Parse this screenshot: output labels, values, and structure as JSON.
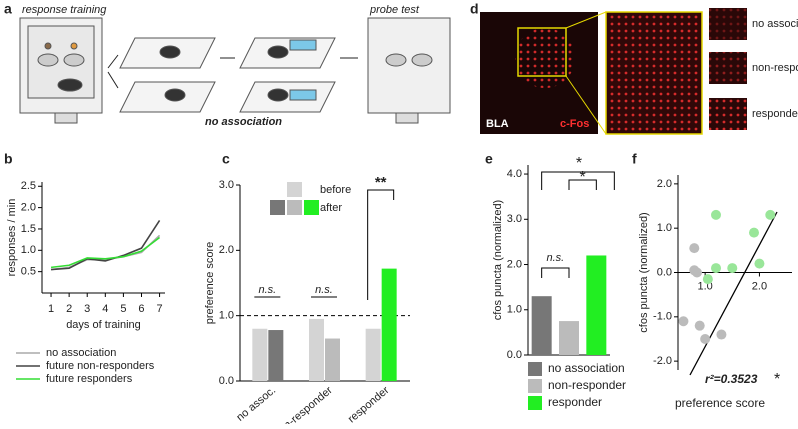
{
  "panels": {
    "letters": [
      "a",
      "b",
      "c",
      "d",
      "e",
      "f"
    ],
    "a": {
      "left": "response training",
      "right": "probe test",
      "bottom": "no association"
    },
    "d": {
      "region": "BLA",
      "marker": "c-Fos",
      "insets": [
        "no association",
        "non-responder",
        "responder"
      ]
    }
  },
  "chart_data": [
    {
      "type": "line",
      "x": [
        1,
        2,
        3,
        4,
        5,
        6,
        7
      ],
      "xlim": [
        0.5,
        7.3
      ],
      "xticks": [
        1,
        2,
        3,
        4,
        5,
        6,
        7
      ],
      "ylim": [
        0,
        2.6
      ],
      "yticks": [
        0.5,
        {
          "value": 1,
          "label": "1.0"
        },
        1.5,
        {
          "value": 2,
          "label": "2.0"
        },
        2.5
      ],
      "ylabel": "responses / min",
      "xlabel": "days of training",
      "series": [
        {
          "name": "no association",
          "color": "#aaaaaa",
          "values": [
            0.55,
            0.6,
            0.78,
            0.78,
            0.85,
            0.95,
            1.35
          ]
        },
        {
          "name": "future non-responders",
          "color": "#444444",
          "values": [
            0.55,
            0.58,
            0.8,
            0.75,
            0.88,
            1.05,
            1.7
          ]
        },
        {
          "name": "future responders",
          "color": "#33dd33",
          "values": [
            0.6,
            0.65,
            0.82,
            0.8,
            0.85,
            0.98,
            1.3
          ]
        }
      ]
    },
    {
      "type": "grouped-bar",
      "categories": [
        "no assoc.",
        "non-responder",
        "responder"
      ],
      "ylim": [
        0,
        3
      ],
      "yticks": [
        {
          "value": 0,
          "label": "0.0"
        },
        {
          "value": 1,
          "label": "1.0"
        },
        {
          "value": 2,
          "label": "2.0"
        },
        {
          "value": 3,
          "label": "3.0"
        }
      ],
      "ylabel": "preference score",
      "reference_line": 1,
      "series": [
        {
          "name": "before",
          "colors": [
            "#d4d4d4",
            "#d4d4d4",
            "#d4d4d4"
          ],
          "values": [
            0.8,
            0.95,
            0.8
          ]
        },
        {
          "name": "after",
          "colors": [
            "#777777",
            "#bbbbbb",
            "#22ee22"
          ],
          "values": [
            0.78,
            0.65,
            1.72
          ]
        }
      ],
      "annotations": [
        "n.s.",
        "n.s.",
        "**"
      ]
    },
    {
      "type": "bar",
      "categories": [
        "no association",
        "non-responder",
        "responder"
      ],
      "values": [
        1.3,
        0.75,
        2.2
      ],
      "colors": [
        "#777777",
        "#bbbbbb",
        "#22ee22"
      ],
      "ylim": [
        0,
        4.2
      ],
      "yticks": [
        {
          "value": 0,
          "label": "0.0"
        },
        {
          "value": 1,
          "label": "1.0"
        },
        {
          "value": 2,
          "label": "2.0"
        },
        {
          "value": 3,
          "label": "3.0"
        },
        {
          "value": 4,
          "label": "4.0"
        }
      ],
      "ylabel": "cfos puncta (normalized)",
      "annotations": [
        "n.s.",
        "*",
        "*"
      ]
    },
    {
      "type": "scatter",
      "xlim": [
        0.5,
        2.6
      ],
      "xticks": [
        {
          "value": 1,
          "label": "1.0"
        },
        {
          "value": 2,
          "label": "2.0"
        }
      ],
      "ylim": [
        -2.2,
        2.2
      ],
      "yticks": [
        {
          "value": -2,
          "label": "-2.0"
        },
        {
          "value": -1,
          "label": "-1.0"
        },
        {
          "value": 0,
          "label": "0.0"
        },
        {
          "value": 1,
          "label": "1.0"
        },
        {
          "value": 2,
          "label": "2.0"
        }
      ],
      "xlabel": "preference score",
      "ylabel": "cfos puncta (normalized)",
      "series": [
        {
          "color": "#bbbbbb",
          "x": [
            0.8,
            0.8,
            0.85,
            0.6,
            0.9,
            1.0,
            1.3
          ],
          "values": [
            0.55,
            0.05,
            0.0,
            -1.1,
            -1.2,
            -1.5,
            -1.4
          ]
        },
        {
          "color": "#99e699",
          "x": [
            1.2,
            1.5,
            1.2,
            2.0,
            1.9,
            2.2,
            1.05
          ],
          "values": [
            1.3,
            0.1,
            0.1,
            0.2,
            0.9,
            1.3,
            -0.15
          ]
        }
      ],
      "annotations": [
        "r²=0.3523",
        "*"
      ]
    }
  ]
}
